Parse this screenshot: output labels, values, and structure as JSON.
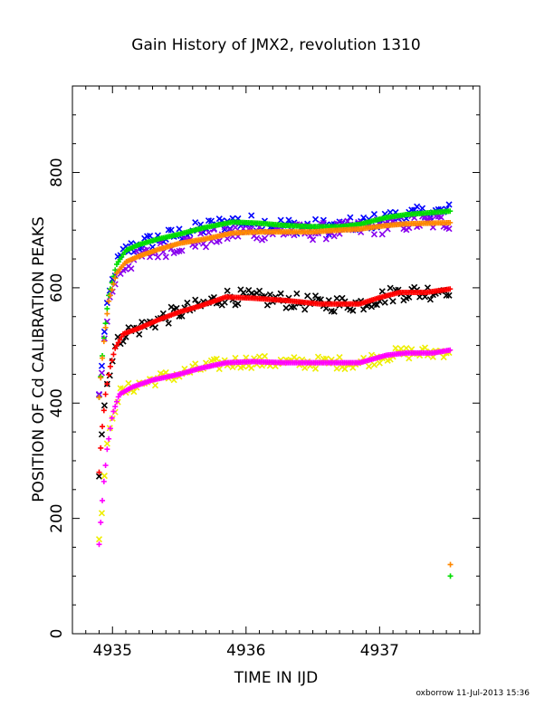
{
  "chart_data": {
    "type": "scatter",
    "title": "Gain History of JMX2, revolution 1310",
    "xlabel": "TIME IN IJD",
    "ylabel": "POSITION OF Cd CALIBRATION PEAKS",
    "footer": "oxborrow 11-Jul-2013 15:36",
    "xlim": [
      4934.7,
      4937.75
    ],
    "ylim": [
      0,
      950
    ],
    "x_ticks": [
      4935,
      4936,
      4937
    ],
    "x_tick_labels": [
      "4935",
      "4936",
      "4937"
    ],
    "y_ticks": [
      0,
      200,
      400,
      600,
      800
    ],
    "y_tick_labels": [
      "0",
      "200",
      "400",
      "600",
      "800"
    ],
    "grid": false,
    "legend": "none",
    "x_start": 4934.9,
    "x_end": 4937.53,
    "series": [
      {
        "color": "#0000ff",
        "marker": "x",
        "role": "raw",
        "curve": [
          [
            4934.9,
            410
          ],
          [
            4934.93,
            500
          ],
          [
            4934.97,
            580
          ],
          [
            4935.03,
            640
          ],
          [
            4935.1,
            665
          ],
          [
            4935.2,
            675
          ],
          [
            4935.35,
            685
          ],
          [
            4935.5,
            693
          ],
          [
            4935.7,
            705
          ],
          [
            4935.9,
            715
          ],
          [
            4936.1,
            712
          ],
          [
            4936.3,
            708
          ],
          [
            4936.5,
            706
          ],
          [
            4936.7,
            706
          ],
          [
            4936.85,
            710
          ],
          [
            4937.05,
            720
          ],
          [
            4937.2,
            725
          ],
          [
            4937.53,
            733
          ]
        ],
        "jitter": 14
      },
      {
        "color": "#8800ee",
        "marker": "x",
        "role": "raw",
        "curve": [
          [
            4934.9,
            410
          ],
          [
            4934.93,
            490
          ],
          [
            4934.97,
            570
          ],
          [
            4935.03,
            620
          ],
          [
            4935.1,
            640
          ],
          [
            4935.2,
            652
          ],
          [
            4935.35,
            665
          ],
          [
            4935.5,
            675
          ],
          [
            4935.7,
            683
          ],
          [
            4935.9,
            695
          ],
          [
            4936.1,
            697
          ],
          [
            4936.3,
            697
          ],
          [
            4936.5,
            697
          ],
          [
            4936.7,
            700
          ],
          [
            4936.85,
            702
          ],
          [
            4937.05,
            708
          ],
          [
            4937.2,
            712
          ],
          [
            4937.53,
            715
          ]
        ],
        "jitter": 15
      },
      {
        "color": "#00dd00",
        "marker": "+",
        "role": "fit",
        "curve": [
          [
            4934.9,
            410
          ],
          [
            4934.93,
            500
          ],
          [
            4934.97,
            585
          ],
          [
            4935.03,
            640
          ],
          [
            4935.1,
            665
          ],
          [
            4935.2,
            675
          ],
          [
            4935.35,
            685
          ],
          [
            4935.5,
            693
          ],
          [
            4935.7,
            705
          ],
          [
            4935.9,
            714
          ],
          [
            4936.1,
            712
          ],
          [
            4936.3,
            708
          ],
          [
            4936.5,
            706
          ],
          [
            4936.7,
            706
          ],
          [
            4936.85,
            710
          ],
          [
            4937.05,
            722
          ],
          [
            4937.2,
            727
          ],
          [
            4937.53,
            733
          ]
        ]
      },
      {
        "color": "#ff8800",
        "marker": "+",
        "role": "fit",
        "curve": [
          [
            4934.9,
            410
          ],
          [
            4934.93,
            495
          ],
          [
            4934.97,
            575
          ],
          [
            4935.03,
            625
          ],
          [
            4935.1,
            645
          ],
          [
            4935.2,
            655
          ],
          [
            4935.35,
            667
          ],
          [
            4935.5,
            677
          ],
          [
            4935.7,
            685
          ],
          [
            4935.9,
            695
          ],
          [
            4936.1,
            697
          ],
          [
            4936.3,
            697
          ],
          [
            4936.5,
            697
          ],
          [
            4936.7,
            700
          ],
          [
            4936.85,
            702
          ],
          [
            4937.05,
            708
          ],
          [
            4937.2,
            711
          ],
          [
            4937.53,
            713
          ]
        ]
      },
      {
        "color": "#000000",
        "marker": "x",
        "role": "raw",
        "curve": [
          [
            4934.9,
            280
          ],
          [
            4934.92,
            350
          ],
          [
            4934.95,
            420
          ],
          [
            4934.98,
            460
          ],
          [
            4935.02,
            495
          ],
          [
            4935.08,
            520
          ],
          [
            4935.2,
            530
          ],
          [
            4935.35,
            545
          ],
          [
            4935.5,
            558
          ],
          [
            4935.65,
            568
          ],
          [
            4935.85,
            585
          ],
          [
            4936.05,
            582
          ],
          [
            4936.3,
            578
          ],
          [
            4936.55,
            572
          ],
          [
            4936.85,
            572
          ],
          [
            4937.0,
            583
          ],
          [
            4937.15,
            592
          ],
          [
            4937.35,
            592
          ],
          [
            4937.53,
            600
          ]
        ],
        "jitter": 14
      },
      {
        "color": "#ff0000",
        "marker": "+",
        "role": "fit",
        "curve": [
          [
            4934.9,
            280
          ],
          [
            4934.92,
            350
          ],
          [
            4934.95,
            420
          ],
          [
            4934.98,
            460
          ],
          [
            4935.02,
            495
          ],
          [
            4935.08,
            520
          ],
          [
            4935.2,
            530
          ],
          [
            4935.35,
            545
          ],
          [
            4935.5,
            558
          ],
          [
            4935.65,
            568
          ],
          [
            4935.85,
            584
          ],
          [
            4936.05,
            582
          ],
          [
            4936.3,
            578
          ],
          [
            4936.55,
            572
          ],
          [
            4936.85,
            572
          ],
          [
            4937.0,
            583
          ],
          [
            4937.15,
            592
          ],
          [
            4937.35,
            592
          ],
          [
            4937.53,
            598
          ]
        ]
      },
      {
        "color": "#eeee00",
        "marker": "x",
        "role": "raw",
        "curve": [
          [
            4934.9,
            155
          ],
          [
            4934.93,
            250
          ],
          [
            4934.96,
            320
          ],
          [
            4935.0,
            380
          ],
          [
            4935.05,
            415
          ],
          [
            4935.15,
            428
          ],
          [
            4935.3,
            440
          ],
          [
            4935.5,
            450
          ],
          [
            4935.65,
            460
          ],
          [
            4935.85,
            470
          ],
          [
            4936.05,
            472
          ],
          [
            4936.3,
            470
          ],
          [
            4936.55,
            470
          ],
          [
            4936.85,
            470
          ],
          [
            4937.05,
            483
          ],
          [
            4937.2,
            487
          ],
          [
            4937.4,
            487
          ],
          [
            4937.53,
            492
          ]
        ],
        "jitter": 11
      },
      {
        "color": "#ff00ff",
        "marker": "+",
        "role": "fit",
        "curve": [
          [
            4934.9,
            155
          ],
          [
            4934.93,
            250
          ],
          [
            4934.96,
            320
          ],
          [
            4935.0,
            380
          ],
          [
            4935.05,
            415
          ],
          [
            4935.15,
            428
          ],
          [
            4935.3,
            440
          ],
          [
            4935.5,
            450
          ],
          [
            4935.65,
            460
          ],
          [
            4935.85,
            470
          ],
          [
            4936.05,
            472
          ],
          [
            4936.3,
            470
          ],
          [
            4936.55,
            470
          ],
          [
            4936.85,
            470
          ],
          [
            4937.05,
            483
          ],
          [
            4937.2,
            487
          ],
          [
            4937.4,
            487
          ],
          [
            4937.53,
            492
          ]
        ]
      }
    ],
    "extra_points": [
      {
        "x": 4937.53,
        "y": 120,
        "color": "#ff8800",
        "marker": "+"
      },
      {
        "x": 4937.53,
        "y": 100,
        "color": "#00dd00",
        "marker": "+"
      }
    ]
  }
}
